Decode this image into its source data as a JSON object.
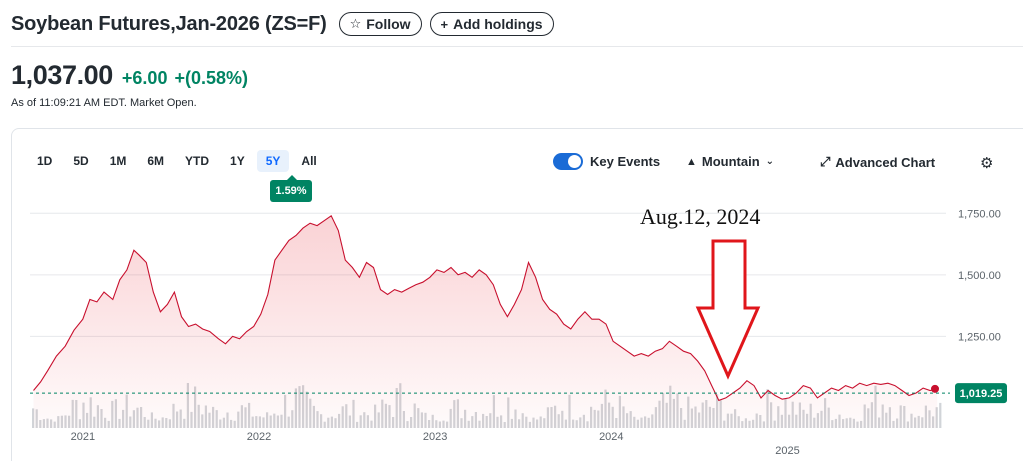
{
  "header": {
    "title": "Soybean Futures,Jan-2026 (ZS=F)",
    "follow_label": "Follow",
    "add_holdings_label": "Add holdings"
  },
  "quote": {
    "price": "1,037.00",
    "change": "+6.00",
    "change_percent": "+(0.58%)",
    "as_of": "As of 11:09:21 AM EDT. Market Open.",
    "positive_color": "#008463"
  },
  "toolbar": {
    "ranges": [
      "1D",
      "5D",
      "1M",
      "6M",
      "YTD",
      "1Y",
      "5Y",
      "All"
    ],
    "selected_range": "5Y",
    "range_return": "1.59%",
    "key_events_label": "Key Events",
    "key_events_on": true,
    "chart_type_label": "Mountain",
    "advanced_chart_label": "Advanced Chart"
  },
  "icons": {
    "follow": "star-icon",
    "add": "plus-icon",
    "chart_type": "mountain-icon",
    "advanced": "expand-icon",
    "settings": "gear-icon"
  },
  "chart_data": {
    "type": "area",
    "line_color": "#c8102e",
    "ylim": [
      890,
      1800
    ],
    "yticks": [
      {
        "value": 1750,
        "label": "1,750.00"
      },
      {
        "value": 1500,
        "label": "1,500.00"
      },
      {
        "value": 1250,
        "label": "1,250.00"
      }
    ],
    "xticks": [
      {
        "value": 2021.0,
        "label": "2021",
        "row": 0
      },
      {
        "value": 2022.0,
        "label": "2022",
        "row": 0
      },
      {
        "value": 2023.0,
        "label": "2023",
        "row": 0
      },
      {
        "value": 2024.0,
        "label": "2024",
        "row": 0
      },
      {
        "value": 2025.0,
        "label": "2025",
        "row": 1
      }
    ],
    "xlim": [
      2020.7,
      2025.9
    ],
    "reference_value": 1019.25,
    "reference_label": "1,019.25",
    "points": [
      [
        2020.72,
        1030
      ],
      [
        2020.76,
        1065
      ],
      [
        2020.8,
        1110
      ],
      [
        2020.85,
        1170
      ],
      [
        2020.9,
        1210
      ],
      [
        2020.95,
        1275
      ],
      [
        2021.0,
        1320
      ],
      [
        2021.04,
        1400
      ],
      [
        2021.08,
        1390
      ],
      [
        2021.12,
        1430
      ],
      [
        2021.17,
        1400
      ],
      [
        2021.21,
        1480
      ],
      [
        2021.25,
        1520
      ],
      [
        2021.29,
        1600
      ],
      [
        2021.32,
        1580
      ],
      [
        2021.36,
        1550
      ],
      [
        2021.4,
        1430
      ],
      [
        2021.44,
        1350
      ],
      [
        2021.48,
        1380
      ],
      [
        2021.52,
        1430
      ],
      [
        2021.56,
        1330
      ],
      [
        2021.6,
        1290
      ],
      [
        2021.64,
        1300
      ],
      [
        2021.68,
        1280
      ],
      [
        2021.72,
        1270
      ],
      [
        2021.77,
        1240
      ],
      [
        2021.81,
        1220
      ],
      [
        2021.85,
        1250
      ],
      [
        2021.89,
        1240
      ],
      [
        2021.93,
        1270
      ],
      [
        2021.97,
        1290
      ],
      [
        2022.01,
        1340
      ],
      [
        2022.05,
        1420
      ],
      [
        2022.09,
        1560
      ],
      [
        2022.13,
        1600
      ],
      [
        2022.17,
        1640
      ],
      [
        2022.21,
        1660
      ],
      [
        2022.25,
        1690
      ],
      [
        2022.29,
        1710
      ],
      [
        2022.33,
        1700
      ],
      [
        2022.37,
        1720
      ],
      [
        2022.41,
        1740
      ],
      [
        2022.45,
        1680
      ],
      [
        2022.49,
        1560
      ],
      [
        2022.53,
        1530
      ],
      [
        2022.57,
        1490
      ],
      [
        2022.61,
        1550
      ],
      [
        2022.65,
        1530
      ],
      [
        2022.69,
        1440
      ],
      [
        2022.73,
        1420
      ],
      [
        2022.77,
        1440
      ],
      [
        2022.81,
        1430
      ],
      [
        2022.85,
        1445
      ],
      [
        2022.89,
        1460
      ],
      [
        2022.93,
        1470
      ],
      [
        2022.97,
        1490
      ],
      [
        2023.01,
        1520
      ],
      [
        2023.05,
        1510
      ],
      [
        2023.09,
        1530
      ],
      [
        2023.13,
        1500
      ],
      [
        2023.17,
        1510
      ],
      [
        2023.21,
        1490
      ],
      [
        2023.25,
        1520
      ],
      [
        2023.29,
        1500
      ],
      [
        2023.33,
        1460
      ],
      [
        2023.37,
        1380
      ],
      [
        2023.41,
        1330
      ],
      [
        2023.45,
        1380
      ],
      [
        2023.49,
        1440
      ],
      [
        2023.53,
        1550
      ],
      [
        2023.57,
        1490
      ],
      [
        2023.61,
        1400
      ],
      [
        2023.65,
        1360
      ],
      [
        2023.69,
        1340
      ],
      [
        2023.73,
        1300
      ],
      [
        2023.77,
        1280
      ],
      [
        2023.81,
        1320
      ],
      [
        2023.85,
        1350
      ],
      [
        2023.89,
        1320
      ],
      [
        2023.93,
        1320
      ],
      [
        2023.97,
        1300
      ],
      [
        2024.01,
        1230
      ],
      [
        2024.05,
        1210
      ],
      [
        2024.09,
        1190
      ],
      [
        2024.13,
        1170
      ],
      [
        2024.17,
        1180
      ],
      [
        2024.21,
        1170
      ],
      [
        2024.25,
        1190
      ],
      [
        2024.29,
        1200
      ],
      [
        2024.33,
        1230
      ],
      [
        2024.37,
        1210
      ],
      [
        2024.41,
        1190
      ],
      [
        2024.45,
        1180
      ],
      [
        2024.49,
        1150
      ],
      [
        2024.53,
        1110
      ],
      [
        2024.57,
        1050
      ],
      [
        2024.61,
        990
      ],
      [
        2024.65,
        1000
      ],
      [
        2024.69,
        1020
      ],
      [
        2024.73,
        1040
      ],
      [
        2024.77,
        1070
      ],
      [
        2024.81,
        1050
      ],
      [
        2024.85,
        1000
      ],
      [
        2024.89,
        1030
      ],
      [
        2024.93,
        1010
      ],
      [
        2024.97,
        995
      ],
      [
        2025.01,
        1000
      ],
      [
        2025.05,
        1020
      ],
      [
        2025.09,
        1050
      ],
      [
        2025.13,
        1040
      ],
      [
        2025.17,
        1000
      ],
      [
        2025.21,
        1020
      ],
      [
        2025.25,
        1040
      ],
      [
        2025.29,
        1030
      ],
      [
        2025.33,
        1050
      ],
      [
        2025.37,
        1040
      ],
      [
        2025.41,
        1060
      ],
      [
        2025.45,
        1050
      ],
      [
        2025.49,
        1060
      ],
      [
        2025.53,
        1055
      ],
      [
        2025.57,
        1060
      ],
      [
        2025.61,
        1050
      ],
      [
        2025.65,
        1030
      ],
      [
        2025.69,
        1010
      ],
      [
        2025.73,
        1020
      ],
      [
        2025.77,
        1040
      ],
      [
        2025.81,
        1030
      ],
      [
        2025.85,
        1037
      ]
    ]
  },
  "annotation": {
    "label": "Aug.12, 2024"
  }
}
